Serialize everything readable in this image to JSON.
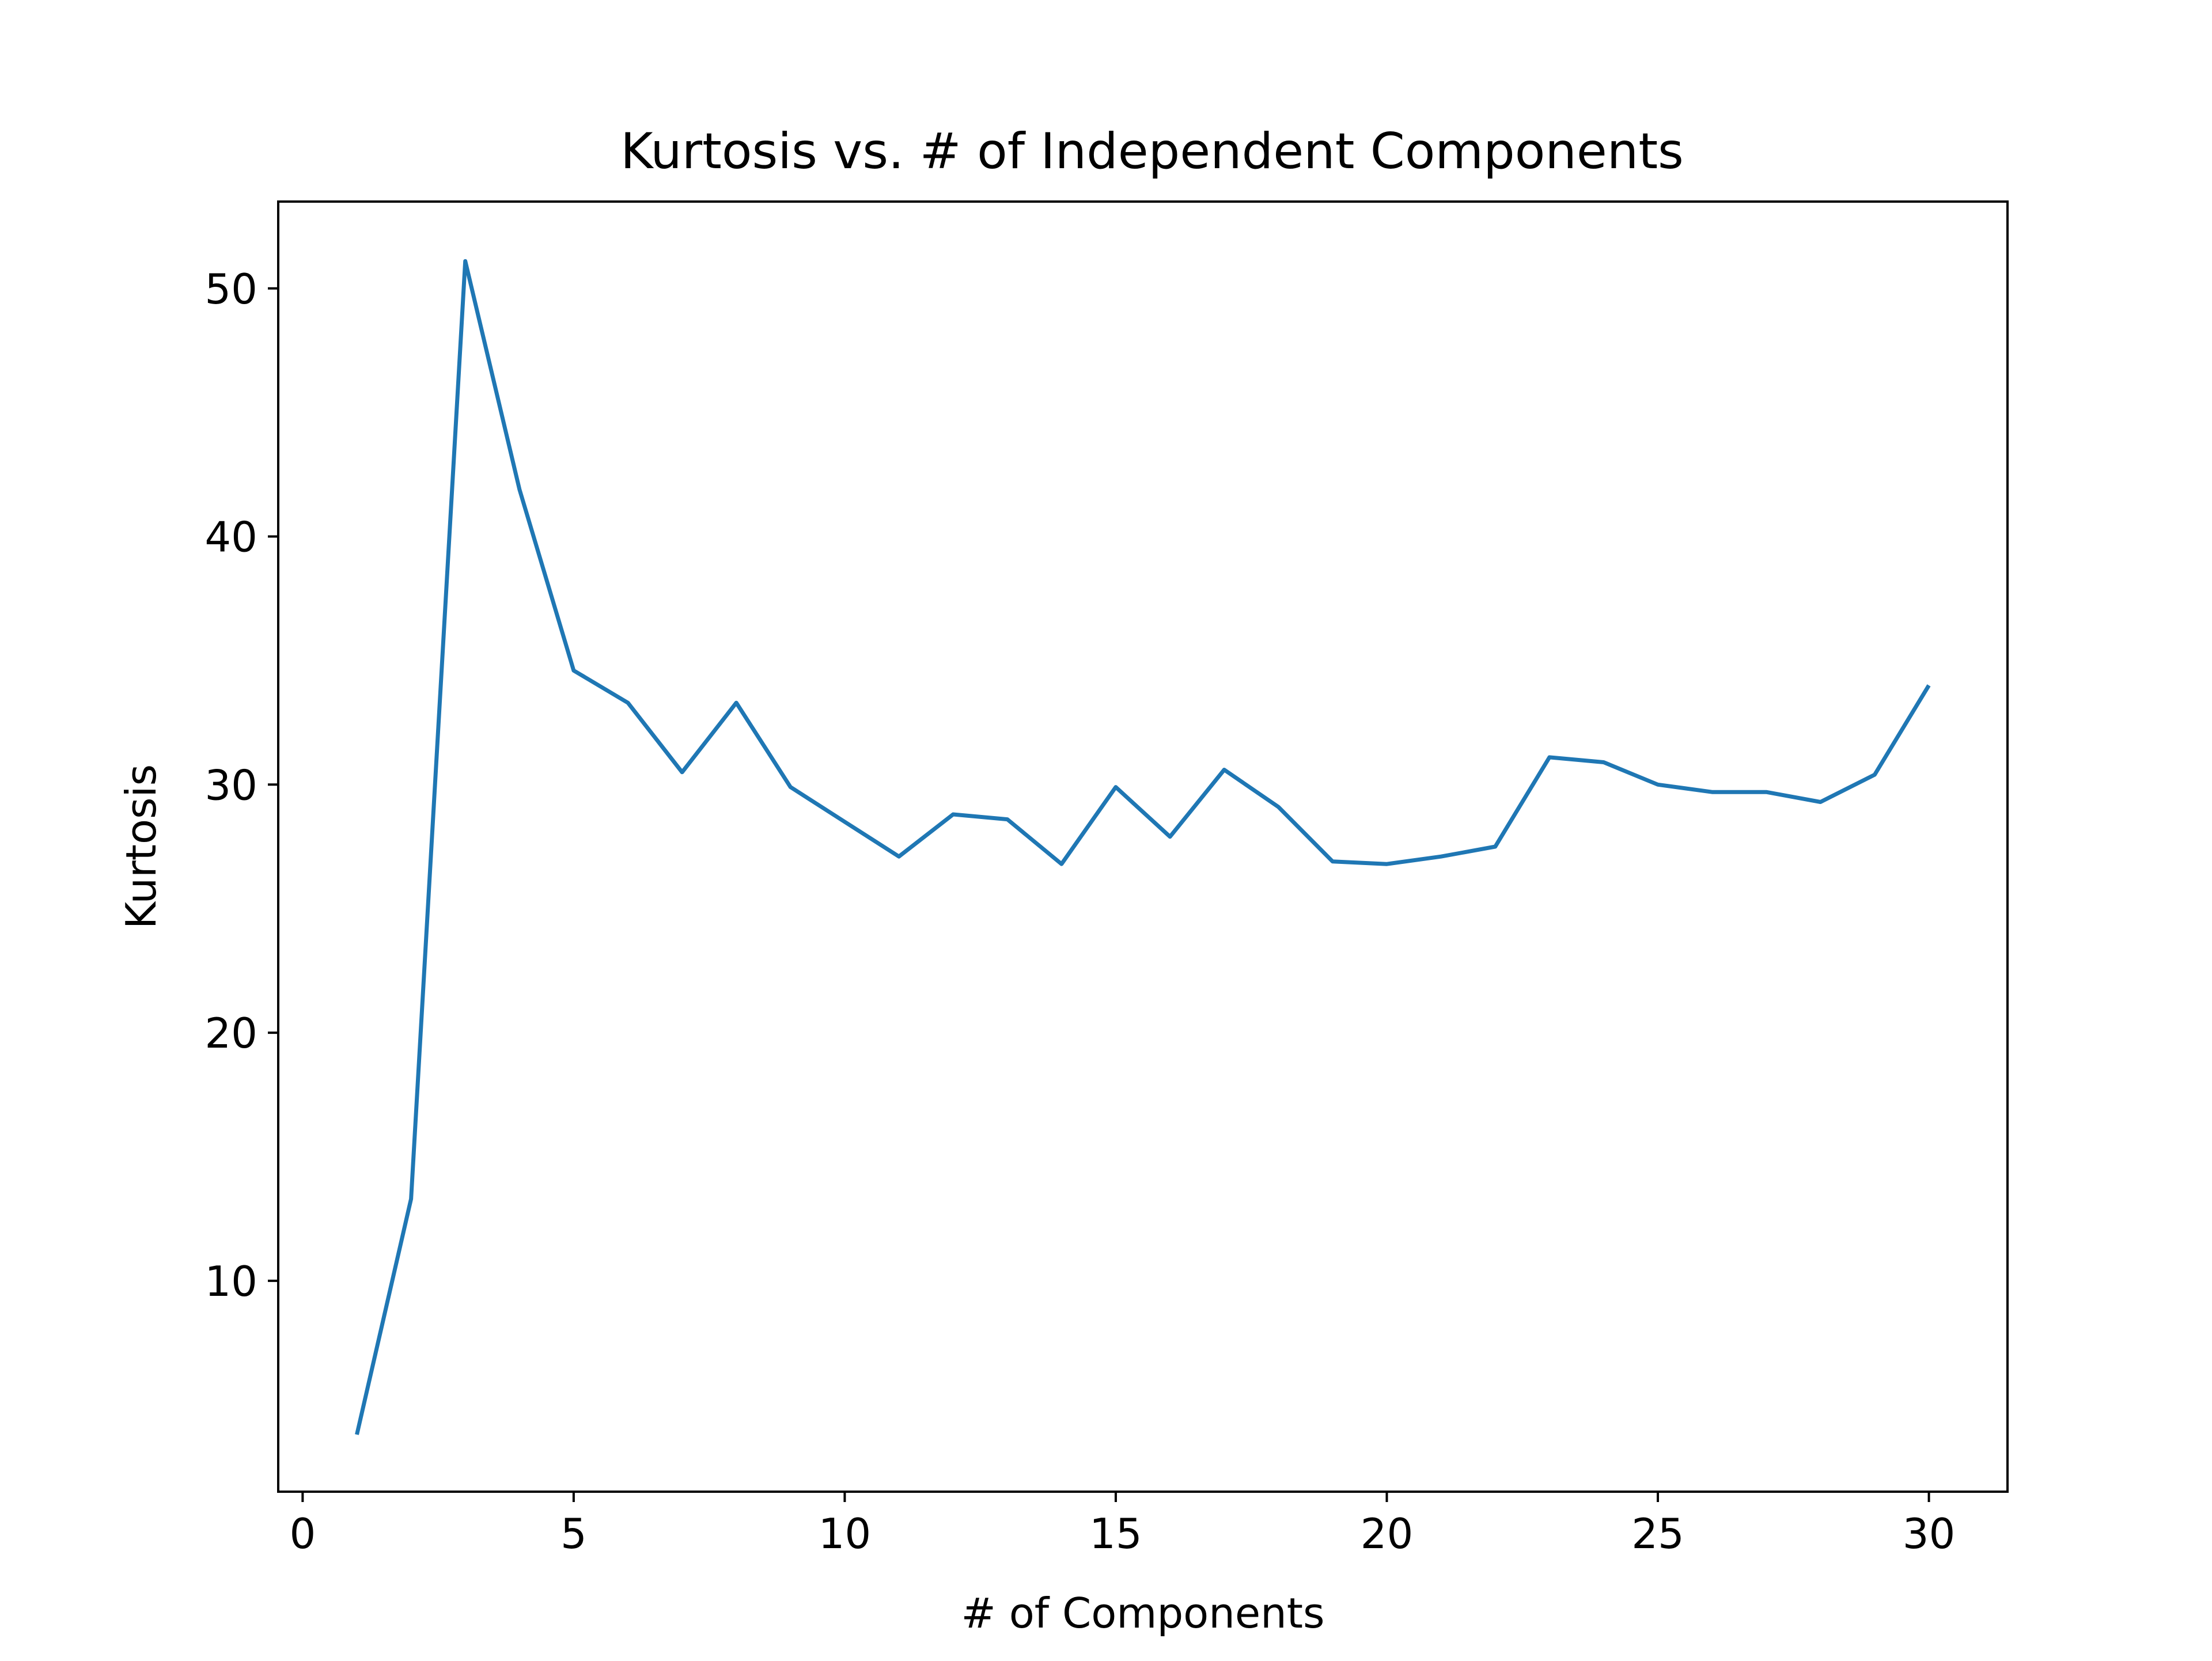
{
  "chart_data": {
    "type": "line",
    "title": "Kurtosis vs. # of Independent Components",
    "xlabel": "# of Components",
    "ylabel": "Kurtosis",
    "xlim": [
      -0.45,
      31.45
    ],
    "ylim": [
      1.5,
      53.5
    ],
    "xticks": [
      0,
      5,
      10,
      15,
      20,
      25,
      30
    ],
    "yticks": [
      10,
      20,
      30,
      40,
      50
    ],
    "grid": false,
    "legend": null,
    "series": [
      {
        "color": "#1f77b4",
        "x": [
          1,
          2,
          3,
          4,
          5,
          6,
          7,
          8,
          9,
          10,
          11,
          12,
          13,
          14,
          15,
          16,
          17,
          18,
          19,
          20,
          21,
          22,
          23,
          24,
          25,
          26,
          27,
          28,
          29,
          30
        ],
        "y": [
          3.8,
          13.3,
          51.1,
          41.9,
          34.6,
          33.3,
          30.5,
          33.3,
          29.9,
          28.5,
          27.1,
          28.8,
          28.6,
          26.8,
          29.9,
          27.9,
          30.6,
          29.1,
          26.9,
          26.8,
          27.1,
          27.5,
          31.1,
          30.9,
          30.0,
          29.7,
          29.7,
          29.3,
          30.4,
          34.0
        ]
      }
    ]
  }
}
